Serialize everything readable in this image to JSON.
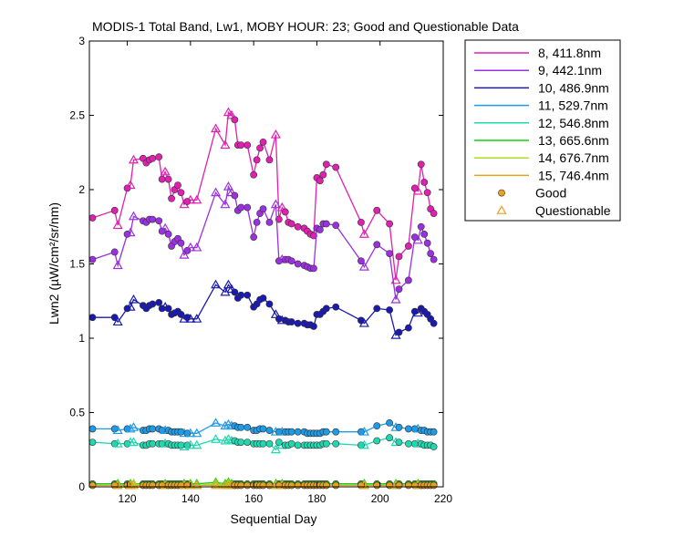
{
  "chart_data": {
    "type": "line",
    "title": "MODIS-1 Total Band, Lw1, MOBY HOUR: 23;  Good and Questionable Data",
    "xlabel": "Sequential Day",
    "ylabel": "Lwn2 (µW/cm²/sr/nm)",
    "xlim": [
      108,
      220
    ],
    "ylim": [
      0,
      3
    ],
    "xticks": [
      120,
      140,
      160,
      180,
      200,
      220
    ],
    "yticks": [
      0,
      0.5,
      1,
      1.5,
      2,
      2.5,
      3
    ],
    "xtick_labels": [
      "120",
      "140",
      "160",
      "180",
      "200",
      "220"
    ],
    "ytick_labels": [
      "0",
      "0.5",
      "1",
      "1.5",
      "2",
      "2.5",
      "3"
    ],
    "grid": false,
    "legend_position": "outside-right",
    "x": [
      109,
      116,
      117,
      120,
      121,
      122,
      125,
      126,
      127,
      128,
      130,
      131,
      132,
      133,
      134,
      135,
      136,
      137,
      138,
      139,
      140,
      142,
      148,
      151,
      152,
      153,
      154,
      155,
      156,
      158,
      160,
      161,
      162,
      163,
      165,
      167,
      168,
      169,
      170,
      171,
      172,
      174,
      176,
      177,
      178,
      179,
      180,
      181,
      182,
      183,
      186,
      194,
      195,
      199,
      203,
      205,
      206,
      209,
      211,
      212,
      213,
      214,
      215,
      216,
      217
    ],
    "series": [
      {
        "name": "8, 411.8nm",
        "color": "#e020b0",
        "values": [
          1.81,
          1.86,
          1.76,
          2.01,
          2.03,
          2.2,
          2.21,
          2.18,
          2.2,
          2.21,
          2.22,
          2.07,
          2.12,
          2.07,
          1.94,
          2.0,
          2.03,
          1.98,
          1.9,
          1.92,
          1.93,
          1.93,
          2.41,
          2.3,
          2.52,
          2.5,
          2.47,
          2.3,
          2.3,
          2.3,
          2.1,
          2.2,
          2.28,
          2.32,
          2.2,
          2.37,
          1.8,
          1.88,
          1.85,
          1.78,
          1.77,
          1.75,
          1.74,
          1.72,
          1.7,
          1.69,
          2.08,
          2.06,
          2.1,
          2.17,
          2.15,
          1.78,
          1.7,
          1.86,
          1.77,
          1.39,
          1.55,
          1.62,
          2.01,
          1.99,
          2.17,
          2.05,
          1.98,
          1.87,
          1.84
        ],
        "status": [
          "g",
          "g",
          "q",
          "g",
          "q",
          "q",
          "g",
          "g",
          "g",
          "g",
          "g",
          "g",
          "q",
          "g",
          "g",
          "g",
          "g",
          "g",
          "q",
          "g",
          "q",
          "q",
          "q",
          "q",
          "q",
          "q",
          "g",
          "g",
          "g",
          "g",
          "g",
          "g",
          "g",
          "g",
          "g",
          "q",
          "g",
          "q",
          "g",
          "g",
          "g",
          "g",
          "g",
          "g",
          "g",
          "g",
          "g",
          "g",
          "g",
          "g",
          "g",
          "g",
          "q",
          "g",
          "g",
          "q",
          "g",
          "g",
          "g",
          "q",
          "g",
          "g",
          "g",
          "g",
          "g"
        ]
      },
      {
        "name": "9, 442.1nm",
        "color": "#9b30e0",
        "values": [
          1.53,
          1.58,
          1.49,
          1.7,
          1.71,
          1.82,
          1.79,
          1.78,
          1.8,
          1.8,
          1.79,
          1.72,
          1.74,
          1.7,
          1.62,
          1.65,
          1.67,
          1.64,
          1.56,
          1.59,
          1.61,
          1.61,
          1.98,
          1.9,
          2.02,
          1.98,
          1.96,
          1.86,
          1.88,
          1.88,
          1.68,
          1.78,
          1.84,
          1.87,
          1.78,
          1.9,
          1.52,
          1.53,
          1.53,
          1.53,
          1.52,
          1.5,
          1.49,
          1.48,
          1.47,
          1.47,
          1.74,
          1.73,
          1.77,
          1.77,
          1.76,
          1.52,
          1.48,
          1.63,
          1.57,
          1.26,
          1.33,
          1.39,
          1.68,
          1.66,
          1.75,
          1.7,
          1.64,
          1.57,
          1.53
        ],
        "status": [
          "g",
          "g",
          "q",
          "g",
          "q",
          "q",
          "g",
          "g",
          "g",
          "g",
          "g",
          "g",
          "q",
          "g",
          "g",
          "g",
          "g",
          "g",
          "q",
          "g",
          "q",
          "q",
          "q",
          "q",
          "q",
          "q",
          "g",
          "g",
          "g",
          "g",
          "g",
          "g",
          "g",
          "g",
          "g",
          "q",
          "g",
          "q",
          "g",
          "g",
          "g",
          "g",
          "g",
          "g",
          "g",
          "g",
          "g",
          "g",
          "g",
          "g",
          "g",
          "g",
          "q",
          "g",
          "g",
          "q",
          "g",
          "g",
          "g",
          "q",
          "g",
          "g",
          "g",
          "g",
          "g"
        ]
      },
      {
        "name": "10, 486.9nm",
        "color": "#1a1ab0",
        "values": [
          1.14,
          1.14,
          1.11,
          1.2,
          1.21,
          1.26,
          1.22,
          1.2,
          1.22,
          1.23,
          1.24,
          1.2,
          1.21,
          1.2,
          1.16,
          1.17,
          1.18,
          1.16,
          1.13,
          1.14,
          1.13,
          1.13,
          1.36,
          1.31,
          1.36,
          1.33,
          1.31,
          1.27,
          1.29,
          1.29,
          1.21,
          1.23,
          1.26,
          1.27,
          1.23,
          1.16,
          1.13,
          1.12,
          1.12,
          1.11,
          1.11,
          1.1,
          1.1,
          1.09,
          1.09,
          1.08,
          1.16,
          1.16,
          1.18,
          1.2,
          1.21,
          1.12,
          1.1,
          1.2,
          1.19,
          1.02,
          1.04,
          1.07,
          1.18,
          1.17,
          1.2,
          1.18,
          1.16,
          1.13,
          1.1
        ],
        "status": [
          "g",
          "g",
          "q",
          "g",
          "q",
          "q",
          "g",
          "g",
          "g",
          "g",
          "g",
          "g",
          "q",
          "g",
          "g",
          "g",
          "g",
          "g",
          "q",
          "g",
          "q",
          "q",
          "q",
          "q",
          "q",
          "q",
          "g",
          "g",
          "g",
          "g",
          "g",
          "g",
          "g",
          "g",
          "g",
          "q",
          "g",
          "q",
          "g",
          "g",
          "g",
          "g",
          "g",
          "g",
          "g",
          "g",
          "g",
          "g",
          "g",
          "g",
          "g",
          "g",
          "q",
          "g",
          "g",
          "q",
          "g",
          "g",
          "g",
          "q",
          "g",
          "g",
          "g",
          "g",
          "g"
        ]
      },
      {
        "name": "11, 529.7nm",
        "color": "#1e9be8",
        "values": [
          0.39,
          0.39,
          0.38,
          0.39,
          0.39,
          0.4,
          0.38,
          0.38,
          0.39,
          0.39,
          0.39,
          0.38,
          0.38,
          0.38,
          0.37,
          0.37,
          0.37,
          0.37,
          0.36,
          0.36,
          0.36,
          0.36,
          0.43,
          0.41,
          0.42,
          0.41,
          0.41,
          0.4,
          0.4,
          0.4,
          0.38,
          0.38,
          0.39,
          0.39,
          0.38,
          0.37,
          0.37,
          0.37,
          0.37,
          0.37,
          0.37,
          0.37,
          0.37,
          0.36,
          0.36,
          0.36,
          0.36,
          0.36,
          0.37,
          0.37,
          0.37,
          0.37,
          0.37,
          0.41,
          0.43,
          0.4,
          0.4,
          0.39,
          0.39,
          0.39,
          0.38,
          0.38,
          0.37,
          0.37,
          0.37
        ],
        "status": [
          "g",
          "g",
          "q",
          "g",
          "q",
          "q",
          "g",
          "g",
          "g",
          "g",
          "g",
          "g",
          "q",
          "g",
          "g",
          "g",
          "g",
          "g",
          "q",
          "g",
          "q",
          "q",
          "q",
          "q",
          "q",
          "q",
          "g",
          "g",
          "g",
          "g",
          "g",
          "g",
          "g",
          "g",
          "g",
          "q",
          "g",
          "q",
          "g",
          "g",
          "g",
          "g",
          "g",
          "g",
          "g",
          "g",
          "g",
          "g",
          "g",
          "g",
          "g",
          "g",
          "q",
          "g",
          "g",
          "q",
          "g",
          "g",
          "g",
          "q",
          "g",
          "g",
          "g",
          "g",
          "g"
        ]
      },
      {
        "name": "12, 546.8nm",
        "color": "#20d8b0",
        "values": [
          0.3,
          0.29,
          0.29,
          0.29,
          0.3,
          0.3,
          0.28,
          0.28,
          0.29,
          0.29,
          0.29,
          0.29,
          0.29,
          0.29,
          0.28,
          0.28,
          0.28,
          0.28,
          0.27,
          0.28,
          0.28,
          0.28,
          0.32,
          0.31,
          0.32,
          0.31,
          0.31,
          0.3,
          0.3,
          0.3,
          0.29,
          0.29,
          0.29,
          0.29,
          0.29,
          0.25,
          0.3,
          0.28,
          0.28,
          0.28,
          0.29,
          0.28,
          0.28,
          0.28,
          0.28,
          0.28,
          0.28,
          0.28,
          0.29,
          0.29,
          0.29,
          0.28,
          0.28,
          0.31,
          0.33,
          0.3,
          0.3,
          0.29,
          0.29,
          0.29,
          0.29,
          0.28,
          0.28,
          0.28,
          0.27
        ],
        "status": [
          "g",
          "g",
          "q",
          "g",
          "q",
          "q",
          "g",
          "g",
          "g",
          "g",
          "g",
          "g",
          "q",
          "g",
          "g",
          "g",
          "g",
          "g",
          "q",
          "g",
          "q",
          "q",
          "q",
          "q",
          "q",
          "q",
          "g",
          "g",
          "g",
          "g",
          "g",
          "g",
          "g",
          "g",
          "g",
          "q",
          "g",
          "q",
          "g",
          "g",
          "g",
          "g",
          "g",
          "g",
          "g",
          "g",
          "g",
          "g",
          "g",
          "g",
          "g",
          "g",
          "q",
          "g",
          "g",
          "q",
          "g",
          "g",
          "g",
          "q",
          "g",
          "g",
          "g",
          "g",
          "g"
        ]
      },
      {
        "name": "13, 665.6nm",
        "color": "#10d010",
        "values": [
          0.02,
          0.02,
          0.02,
          0.02,
          0.02,
          0.02,
          0.02,
          0.02,
          0.02,
          0.02,
          0.02,
          0.02,
          0.02,
          0.02,
          0.02,
          0.02,
          0.02,
          0.02,
          0.02,
          0.02,
          0.02,
          0.02,
          0.03,
          0.02,
          0.03,
          0.02,
          0.02,
          0.02,
          0.02,
          0.02,
          0.02,
          0.02,
          0.02,
          0.02,
          0.02,
          0.02,
          0.02,
          0.02,
          0.02,
          0.02,
          0.02,
          0.02,
          0.02,
          0.02,
          0.02,
          0.02,
          0.02,
          0.02,
          0.02,
          0.02,
          0.02,
          0.02,
          0.02,
          0.02,
          0.02,
          0.02,
          0.02,
          0.02,
          0.02,
          0.02,
          0.02,
          0.02,
          0.02,
          0.02,
          0.02
        ],
        "status": [
          "g",
          "g",
          "q",
          "g",
          "q",
          "q",
          "g",
          "g",
          "g",
          "g",
          "g",
          "g",
          "q",
          "g",
          "g",
          "g",
          "g",
          "g",
          "q",
          "g",
          "q",
          "q",
          "q",
          "q",
          "q",
          "q",
          "g",
          "g",
          "g",
          "g",
          "g",
          "g",
          "g",
          "g",
          "g",
          "q",
          "g",
          "q",
          "g",
          "g",
          "g",
          "g",
          "g",
          "g",
          "g",
          "g",
          "g",
          "g",
          "g",
          "g",
          "g",
          "g",
          "q",
          "g",
          "g",
          "q",
          "g",
          "g",
          "g",
          "q",
          "g",
          "g",
          "g",
          "g",
          "g"
        ]
      },
      {
        "name": "14, 676.7nm",
        "color": "#a8e020",
        "values": [
          0.01,
          0.01,
          0.01,
          0.01,
          0.01,
          0.02,
          0.01,
          0.01,
          0.01,
          0.01,
          0.01,
          0.01,
          0.01,
          0.01,
          0.01,
          0.01,
          0.01,
          0.01,
          0.01,
          0.01,
          0.01,
          0.01,
          0.02,
          0.01,
          0.02,
          0.01,
          0.01,
          0.01,
          0.01,
          0.01,
          0.01,
          0.01,
          0.01,
          0.01,
          0.01,
          0.01,
          0.01,
          0.01,
          0.01,
          0.01,
          0.01,
          0.01,
          0.01,
          0.01,
          0.01,
          0.01,
          0.01,
          0.01,
          0.01,
          0.01,
          0.01,
          0.01,
          0.01,
          0.01,
          0.01,
          0.01,
          0.01,
          0.01,
          0.01,
          0.01,
          0.01,
          0.01,
          0.01,
          0.01,
          0.01
        ],
        "status": [
          "g",
          "g",
          "q",
          "g",
          "q",
          "q",
          "g",
          "g",
          "g",
          "g",
          "g",
          "g",
          "q",
          "g",
          "g",
          "g",
          "g",
          "g",
          "q",
          "g",
          "q",
          "q",
          "q",
          "q",
          "q",
          "q",
          "g",
          "g",
          "g",
          "g",
          "g",
          "g",
          "g",
          "g",
          "g",
          "q",
          "g",
          "q",
          "g",
          "g",
          "g",
          "g",
          "g",
          "g",
          "g",
          "g",
          "g",
          "g",
          "g",
          "g",
          "g",
          "g",
          "q",
          "g",
          "g",
          "q",
          "g",
          "g",
          "g",
          "q",
          "g",
          "g",
          "g",
          "g",
          "g"
        ]
      },
      {
        "name": "15, 746.4nm",
        "color": "#e8a020",
        "values": [
          0.01,
          0.01,
          0.01,
          0.01,
          0.01,
          0.01,
          0.01,
          0.01,
          0.01,
          0.01,
          0.01,
          0.01,
          0.01,
          0.01,
          0.01,
          0.01,
          0.01,
          0.01,
          0.01,
          0.01,
          0.01,
          0.01,
          0.01,
          0.01,
          0.01,
          0.01,
          0.01,
          0.01,
          0.01,
          0.01,
          0.01,
          0.01,
          0.01,
          0.01,
          0.01,
          0.01,
          0.01,
          0.01,
          0.01,
          0.01,
          0.01,
          0.01,
          0.01,
          0.01,
          0.01,
          0.01,
          0.01,
          0.01,
          0.01,
          0.01,
          0.01,
          0.01,
          0.01,
          0.01,
          0.01,
          0.01,
          0.01,
          0.01,
          0.01,
          0.01,
          0.01,
          0.01,
          0.01,
          0.01,
          0.01
        ],
        "status": [
          "g",
          "g",
          "q",
          "g",
          "q",
          "q",
          "g",
          "g",
          "g",
          "g",
          "g",
          "g",
          "q",
          "g",
          "g",
          "g",
          "g",
          "g",
          "q",
          "g",
          "q",
          "q",
          "q",
          "q",
          "q",
          "q",
          "g",
          "g",
          "g",
          "g",
          "g",
          "g",
          "g",
          "g",
          "g",
          "q",
          "g",
          "q",
          "g",
          "g",
          "g",
          "g",
          "g",
          "g",
          "g",
          "g",
          "g",
          "g",
          "g",
          "g",
          "g",
          "g",
          "q",
          "g",
          "g",
          "q",
          "g",
          "g",
          "g",
          "q",
          "g",
          "g",
          "g",
          "g",
          "g"
        ]
      }
    ],
    "marker_legend": [
      {
        "name": "Good",
        "marker": "circle",
        "color": "#e8a020"
      },
      {
        "name": "Questionable",
        "marker": "triangle",
        "color": "#e8a020"
      }
    ]
  }
}
